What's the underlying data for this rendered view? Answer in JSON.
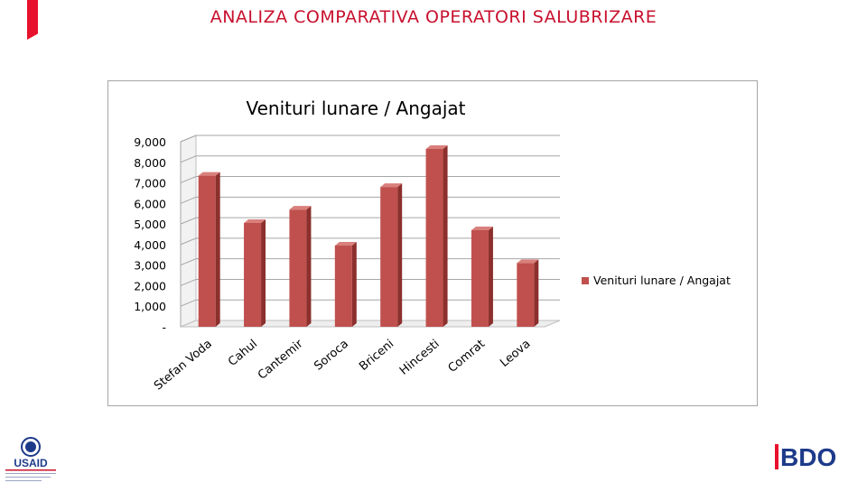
{
  "slide": {
    "title": "ANALIZA COMPARATIVA OPERATORI SALUBRIZARE"
  },
  "colors": {
    "accent": "#e8112d",
    "title": "#c8102e",
    "bar_front": "#c0504d",
    "bar_side": "#8c302d",
    "bar_top": "#d9807c",
    "bdo_red": "#e8112d",
    "bdo_blue": "#1d3a8a"
  },
  "logos": {
    "left": {
      "name": "USAID",
      "text": "USAID"
    },
    "right": {
      "name": "BDO",
      "text": "BDO"
    }
  },
  "chart_data": {
    "type": "bar",
    "title": "Venituri lunare / Angajat",
    "categories": [
      "Stefan Voda",
      "Cahul",
      "Cantemir",
      "Soroca",
      "Briceni",
      "Hincesti",
      "Comrat",
      "Leova"
    ],
    "series": [
      {
        "name": "Venituri lunare / Angajat",
        "values": [
          7350,
          5050,
          5700,
          3950,
          6800,
          8650,
          4700,
          3100
        ]
      }
    ],
    "y_ticks": [
      "-",
      "1,000",
      "2,000",
      "3,000",
      "4,000",
      "5,000",
      "6,000",
      "7,000",
      "8,000",
      "9,000"
    ],
    "ylim": [
      0,
      9000
    ],
    "grid": true,
    "legend_position": "right"
  }
}
